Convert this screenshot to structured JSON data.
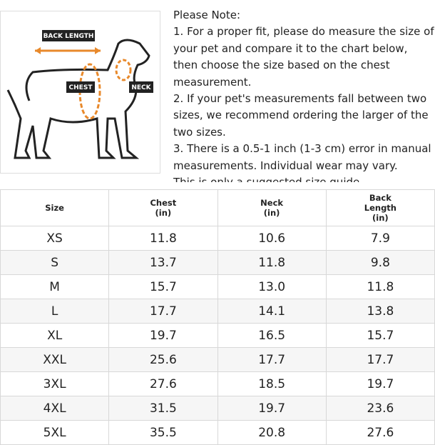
{
  "diagram": {
    "labels": {
      "back_length": "BACK LENGTH",
      "chest": "CHEST",
      "neck": "NECK"
    }
  },
  "note": {
    "title": "Please Note:",
    "items": [
      "1. For a proper fit, please do measure the size of your pet and compare it to the chart below, then choose the size based on the chest measurement.",
      "2. If your pet's measurements fall between two sizes, we recommend ordering the larger of the two sizes.",
      "3. There is a 0.5-1 inch (1-3 cm) error in manual measurements. Individual wear may vary.",
      "This is only a suggested size guide."
    ]
  },
  "table": {
    "header": [
      [
        "Size"
      ],
      [
        "Chest",
        "(in)"
      ],
      [
        "Neck",
        "(in)"
      ],
      [
        "Back",
        "Length",
        "(in)"
      ]
    ],
    "rows": [
      [
        "XS",
        "11.8",
        "10.6",
        "7.9"
      ],
      [
        "S",
        "13.7",
        "11.8",
        "9.8"
      ],
      [
        "M",
        "15.7",
        "13.0",
        "11.8"
      ],
      [
        "L",
        "17.7",
        "14.1",
        "13.8"
      ],
      [
        "XL",
        "19.7",
        "16.5",
        "15.7"
      ],
      [
        "XXL",
        "25.6",
        "17.7",
        "17.7"
      ],
      [
        "3XL",
        "27.6",
        "18.5",
        "19.7"
      ],
      [
        "4XL",
        "31.5",
        "19.7",
        "23.6"
      ],
      [
        "5XL",
        "35.5",
        "20.8",
        "27.6"
      ]
    ]
  }
}
